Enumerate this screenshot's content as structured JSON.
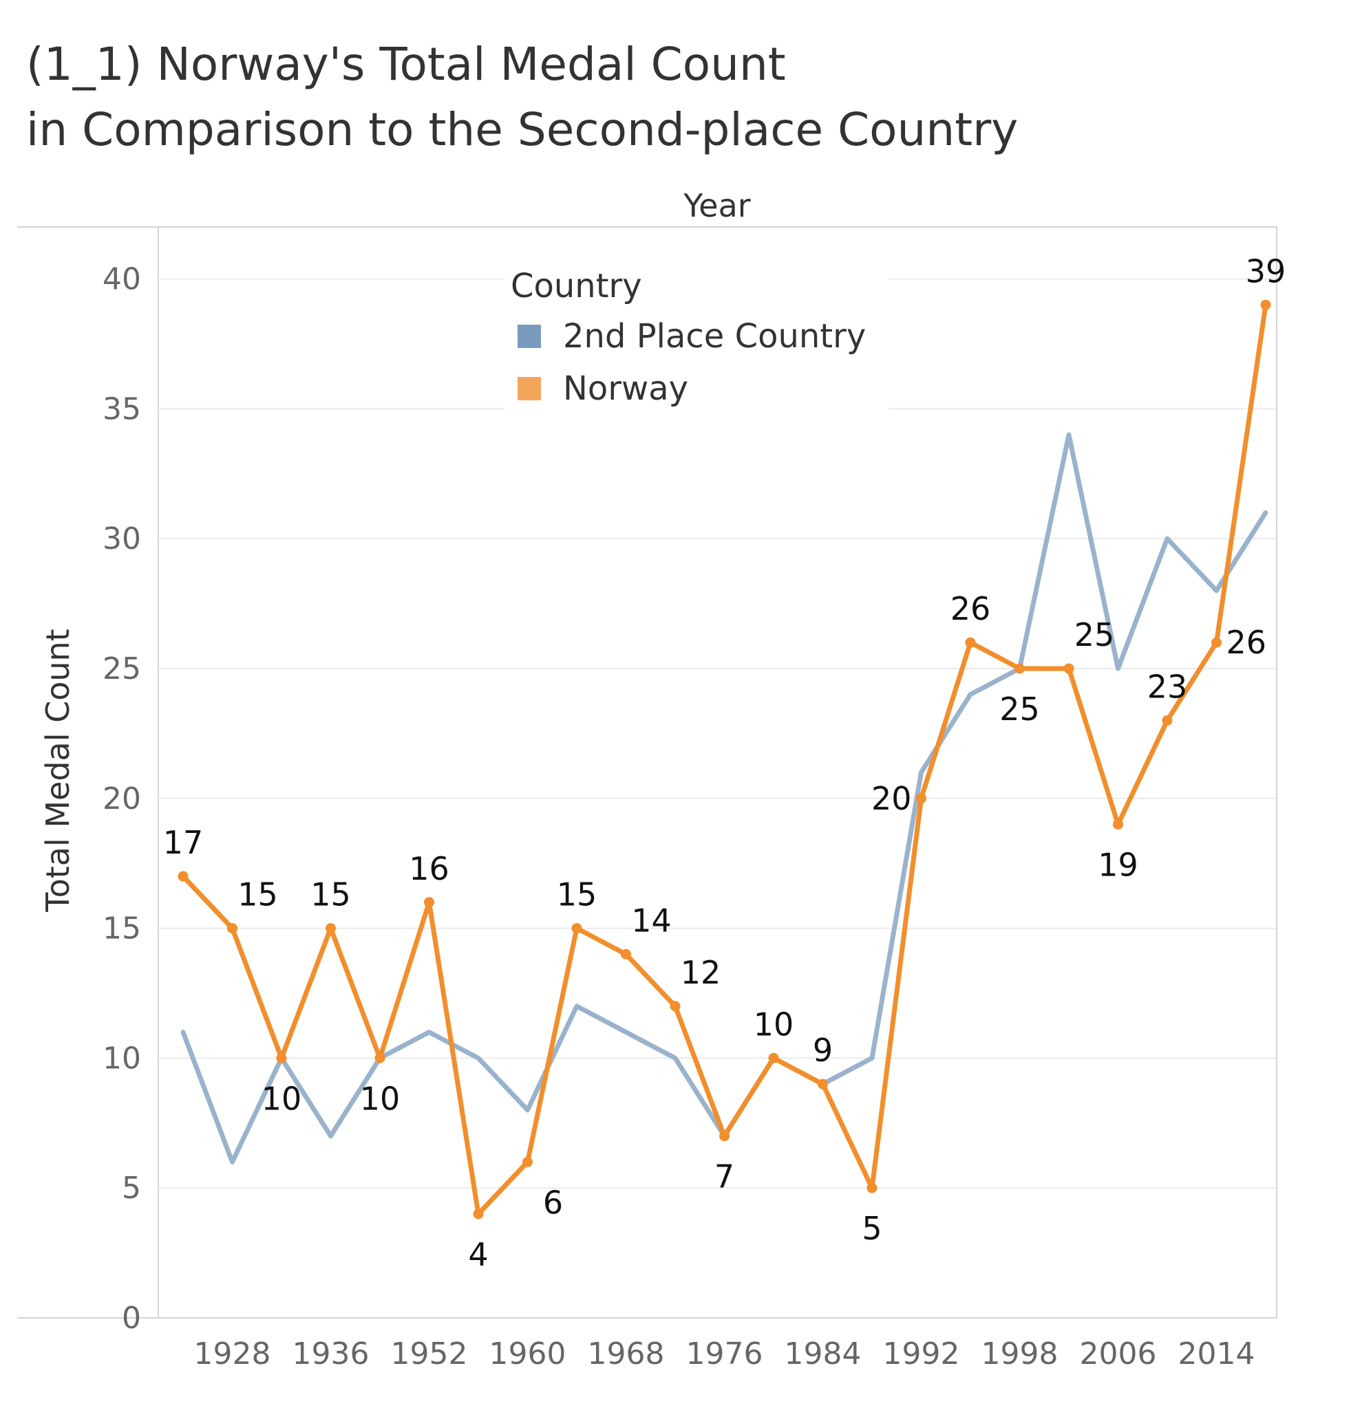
{
  "title": {
    "line1": "(1_1) Norway's Total Medal Count",
    "line2": "in Comparison to the Second-place Country"
  },
  "chart_data": {
    "type": "line",
    "title": "(1_1) Norway's Total Medal Count in Comparison to the Second-place Country",
    "xlabel": "Year",
    "ylabel": "Total Medal Count",
    "ylim": [
      0,
      42
    ],
    "yticks": [
      0,
      5,
      10,
      15,
      20,
      25,
      30,
      35,
      40
    ],
    "xtick_labels": [
      "1928",
      "1936",
      "1952",
      "1960",
      "1968",
      "1976",
      "1984",
      "1992",
      "1998",
      "2006",
      "2014"
    ],
    "x": [
      "1924",
      "1928",
      "1932",
      "1936",
      "1948",
      "1952",
      "1956",
      "1960",
      "1964",
      "1968",
      "1972",
      "1976",
      "1980",
      "1984",
      "1988",
      "1992",
      "1994",
      "1998",
      "2002",
      "2006",
      "2010",
      "2014",
      "2018"
    ],
    "grid": true,
    "legend": {
      "title": "Country",
      "position": "top-center"
    },
    "series": [
      {
        "name": "2nd Place Country",
        "color": "#9ab3cc",
        "swatch_color": "#7a9bbf",
        "values": [
          11,
          6,
          10,
          7,
          10,
          11,
          10,
          8,
          12,
          11,
          10,
          7,
          10,
          9,
          10,
          21,
          24,
          25,
          34,
          25,
          30,
          28,
          31
        ]
      },
      {
        "name": "Norway",
        "color": "#f28e2b",
        "swatch_color": "#f5a55a",
        "values": [
          17,
          15,
          10,
          15,
          10,
          16,
          4,
          6,
          15,
          14,
          12,
          7,
          10,
          9,
          5,
          20,
          26,
          25,
          25,
          19,
          23,
          26,
          39
        ],
        "labels": [
          "17",
          "15",
          "10",
          "15",
          "10",
          "16",
          "4",
          "6",
          "15",
          "14",
          "12",
          "7",
          "10",
          "9",
          "5",
          "20",
          "26",
          "25",
          "25",
          "19",
          "23",
          "26",
          "39"
        ]
      }
    ]
  }
}
